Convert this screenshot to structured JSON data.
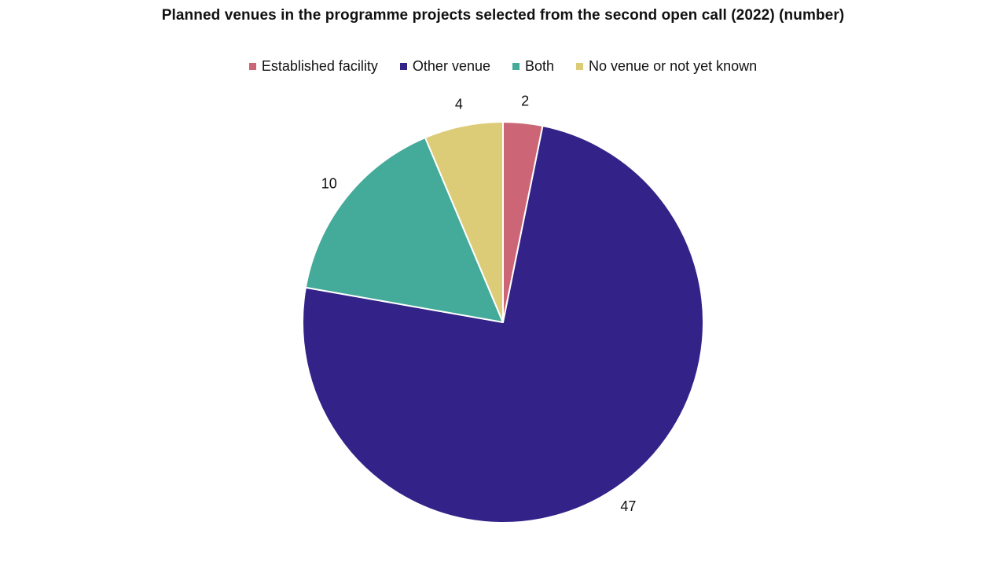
{
  "chart_data": {
    "type": "pie",
    "title": "Planned venues in the programme projects selected from the second open call (2022) (number)",
    "legend_position": "top",
    "slices": [
      {
        "label": "Established facility",
        "value": 2,
        "color": "#cc6677"
      },
      {
        "label": "Other venue",
        "value": 47,
        "color": "#332288"
      },
      {
        "label": "Both",
        "value": 10,
        "color": "#44aa99"
      },
      {
        "label": "No venue or not yet known",
        "value": 4,
        "color": "#ddcc77"
      }
    ]
  }
}
